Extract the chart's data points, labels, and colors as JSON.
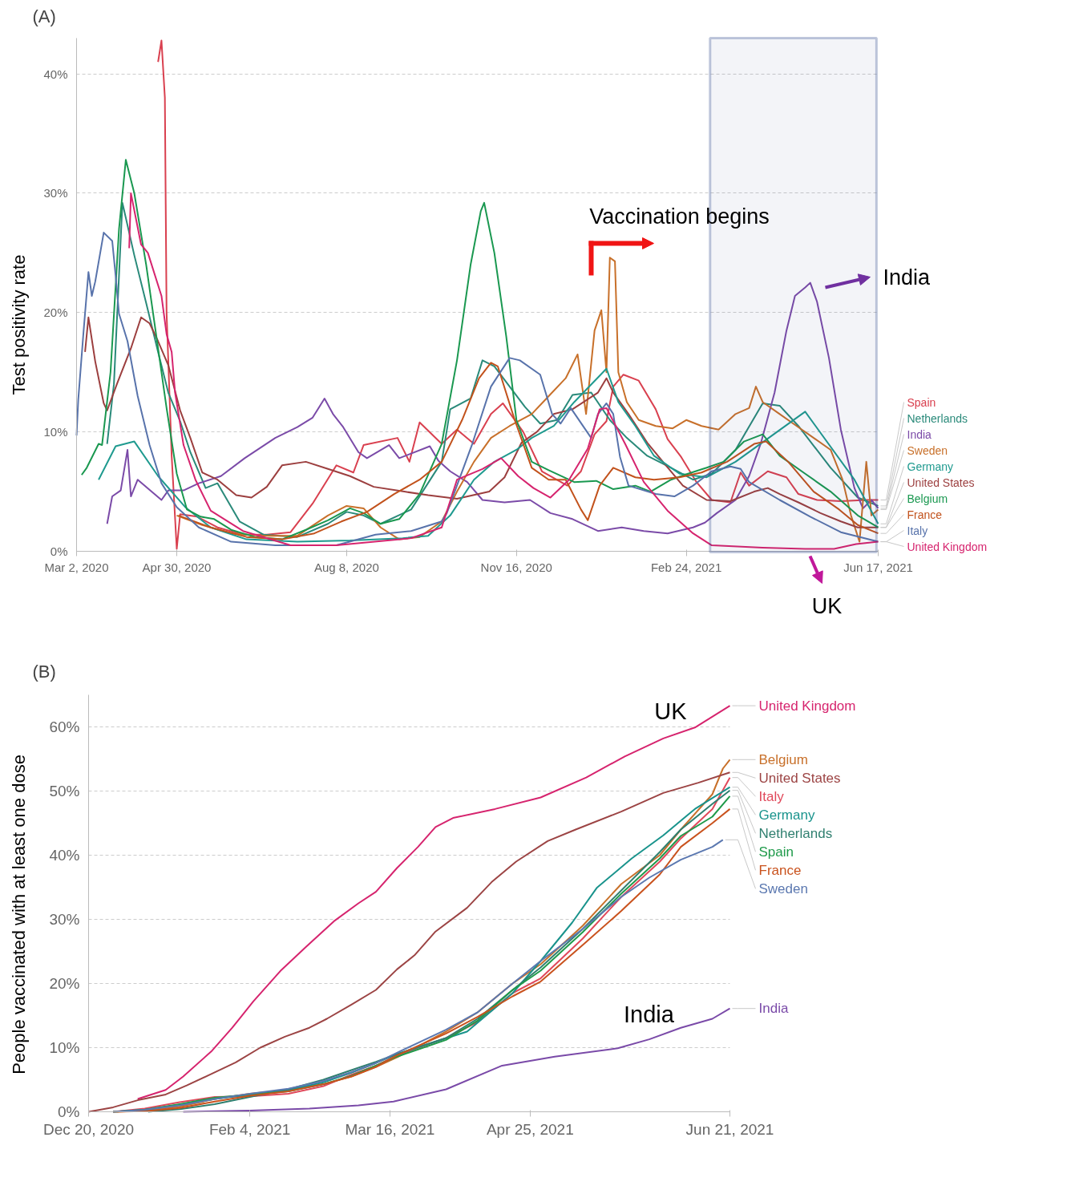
{
  "chart_data": [
    {
      "type": "line",
      "ylabel": "Test positivity rate",
      "xlim": [
        "2020-03-02",
        "2021-06-17"
      ],
      "ylim": [
        0,
        43
      ],
      "xticks": [
        {
          "value": "2020-03-02",
          "label": "Mar 2, 2020"
        },
        {
          "value": "2020-04-30",
          "label": "Apr 30, 2020"
        },
        {
          "value": "2020-08-08",
          "label": "Aug 8, 2020"
        },
        {
          "value": "2020-11-16",
          "label": "Nov 16, 2020"
        },
        {
          "value": "2021-02-24",
          "label": "Feb 24, 2021"
        },
        {
          "value": "2021-06-17",
          "label": "Jun 17, 2021"
        }
      ],
      "yticks": [
        {
          "value": 0,
          "label": "0%"
        },
        {
          "value": 10,
          "label": "10%"
        },
        {
          "value": 20,
          "label": "20%"
        },
        {
          "value": 30,
          "label": "30%"
        },
        {
          "value": 40,
          "label": "40%"
        }
      ],
      "grid": "y",
      "annotations": [
        "(A)",
        "Vaccination begins",
        "India",
        "UK"
      ],
      "bands": [
        {
          "axis": "x",
          "from": "2021-03-10",
          "to": "2021-06-16",
          "color": "#2e4a8a"
        }
      ],
      "series": [
        {
          "name": "Spain",
          "color": "#d9404f",
          "x": [
            "2020-04-19",
            "2020-04-21",
            "2020-04-23",
            "2020-04-24",
            "2020-04-27",
            "2020-04-30",
            "2020-05-02",
            "2020-05-12",
            "2020-05-24",
            "2020-06-08",
            "2020-06-22",
            "2020-07-06",
            "2020-07-19",
            "2020-08-02",
            "2020-08-12",
            "2020-08-18",
            "2020-09-07",
            "2020-09-14",
            "2020-09-20",
            "2020-10-03",
            "2020-10-12",
            "2020-10-22",
            "2020-11-01",
            "2020-11-08",
            "2020-11-20",
            "2020-12-01",
            "2020-12-16",
            "2020-12-24",
            "2021-01-01",
            "2021-01-08",
            "2021-01-12",
            "2021-01-18",
            "2021-01-27",
            "2021-02-06",
            "2021-02-13",
            "2021-02-21",
            "2021-03-02",
            "2021-03-11",
            "2021-03-22",
            "2021-03-28",
            "2021-04-02",
            "2021-04-13",
            "2021-04-24",
            "2021-05-01",
            "2021-05-12",
            "2021-05-26",
            "2021-06-10",
            "2021-06-17"
          ],
          "values": [
            41,
            42.8,
            38,
            20,
            8,
            0.2,
            3.1,
            2.9,
            2.0,
            1.4,
            1.4,
            1.6,
            4.0,
            7.2,
            6.6,
            8.9,
            9.5,
            7.5,
            10.8,
            9.0,
            10.2,
            9.0,
            11.5,
            12.4,
            10.0,
            6.7,
            5.5,
            6.7,
            9.8,
            10.9,
            13.8,
            14.8,
            14.3,
            11.9,
            9.4,
            7.9,
            5.8,
            4.3,
            4.1,
            6.6,
            5.5,
            6.7,
            6.2,
            4.8,
            4.3,
            4.2,
            4.3,
            4.3
          ]
        },
        {
          "name": "Netherlands",
          "color": "#2a8a7a",
          "x": [
            "2020-03-20",
            "2020-03-24",
            "2020-03-29",
            "2020-04-05",
            "2020-04-12",
            "2020-04-19",
            "2020-04-25",
            "2020-05-02",
            "2020-05-08",
            "2020-05-17",
            "2020-05-24",
            "2020-06-06",
            "2020-06-20",
            "2020-07-10",
            "2020-07-28",
            "2020-08-08",
            "2020-08-18",
            "2020-08-28",
            "2020-09-15",
            "2020-10-03",
            "2020-10-08",
            "2020-10-20",
            "2020-10-27",
            "2020-11-03",
            "2020-11-12",
            "2020-11-21",
            "2020-11-30",
            "2020-12-10",
            "2020-12-19",
            "2020-12-30",
            "2021-01-10",
            "2021-01-20",
            "2021-02-01",
            "2021-02-15",
            "2021-02-28",
            "2021-03-11",
            "2021-03-25",
            "2021-04-10",
            "2021-04-20",
            "2021-05-01",
            "2021-05-20",
            "2021-06-05",
            "2021-06-17"
          ],
          "values": [
            9.0,
            14,
            29.2,
            24.8,
            20.8,
            16.7,
            13.3,
            10.9,
            8.3,
            5.3,
            5.7,
            2.5,
            1.4,
            1.2,
            2.3,
            3.3,
            3.0,
            2.3,
            3.5,
            7.5,
            11.9,
            12.8,
            16.0,
            15.5,
            13.8,
            12.1,
            10.7,
            11.0,
            13.1,
            13.3,
            11.0,
            9.5,
            8.0,
            7.0,
            6.0,
            6.5,
            8.5,
            12.4,
            12.2,
            10.5,
            7.0,
            4.5,
            3.8
          ]
        },
        {
          "name": "India",
          "color": "#7b4ba8",
          "x": [
            "2020-03-20",
            "2020-03-23",
            "2020-03-28",
            "2020-04-01",
            "2020-04-03",
            "2020-04-07",
            "2020-04-16",
            "2020-04-21",
            "2020-04-25",
            "2020-05-04",
            "2020-05-13",
            "2020-05-26",
            "2020-06-09",
            "2020-06-27",
            "2020-07-10",
            "2020-07-19",
            "2020-07-26",
            "2020-07-31",
            "2020-08-06",
            "2020-08-15",
            "2020-08-20",
            "2020-09-02",
            "2020-09-08",
            "2020-09-26",
            "2020-10-01",
            "2020-10-08",
            "2020-10-18",
            "2020-10-27",
            "2020-11-09",
            "2020-11-24",
            "2020-12-06",
            "2020-12-19",
            "2021-01-03",
            "2021-01-17",
            "2021-01-30",
            "2021-02-13",
            "2021-02-28",
            "2021-03-07",
            "2021-03-14",
            "2021-03-25",
            "2021-04-02",
            "2021-04-09",
            "2021-04-17",
            "2021-04-24",
            "2021-04-29",
            "2021-05-05",
            "2021-05-08",
            "2021-05-12",
            "2021-05-19",
            "2021-05-26",
            "2021-06-03",
            "2021-06-08",
            "2021-06-13",
            "2021-06-17"
          ],
          "values": [
            2.3,
            4.6,
            5.1,
            8.5,
            4.6,
            6.0,
            4.9,
            4.3,
            5.1,
            5.1,
            5.7,
            6.3,
            7.8,
            9.5,
            10.4,
            11.2,
            12.8,
            11.5,
            10.4,
            8.3,
            7.8,
            8.9,
            7.8,
            8.8,
            7.6,
            6.7,
            5.8,
            4.3,
            4.1,
            4.3,
            3.2,
            2.7,
            1.7,
            2.0,
            1.7,
            1.5,
            2.0,
            2.4,
            3.2,
            4.3,
            6.3,
            9.1,
            13.3,
            18.5,
            21.4,
            22.1,
            22.5,
            20.9,
            16.2,
            10.2,
            5.3,
            3.6,
            4.3,
            3.6
          ]
        },
        {
          "name": "Sweden",
          "color": "#c8702a",
          "x": [
            "2020-04-30",
            "2020-05-15",
            "2020-06-01",
            "2020-06-20",
            "2020-07-10",
            "2020-07-28",
            "2020-08-08",
            "2020-08-18",
            "2020-08-28",
            "2020-09-08",
            "2020-09-20",
            "2020-10-03",
            "2020-10-12",
            "2020-10-22",
            "2020-11-01",
            "2020-11-12",
            "2020-11-25",
            "2020-12-05",
            "2020-12-15",
            "2020-12-22",
            "2020-12-27",
            "2021-01-01",
            "2021-01-05",
            "2021-01-08",
            "2021-01-10",
            "2021-01-13",
            "2021-01-15",
            "2021-01-20",
            "2021-01-27",
            "2021-02-06",
            "2021-02-16",
            "2021-02-24",
            "2021-03-05",
            "2021-03-15",
            "2021-03-25",
            "2021-04-02",
            "2021-04-06",
            "2021-04-10",
            "2021-04-20",
            "2021-04-30",
            "2021-05-10",
            "2021-05-20",
            "2021-05-27",
            "2021-06-01",
            "2021-06-06",
            "2021-06-10",
            "2021-06-13",
            "2021-06-17"
          ],
          "values": [
            3,
            2.2,
            1.5,
            1.3,
            1.3,
            3.0,
            3.8,
            3.6,
            2.0,
            1.0,
            1.2,
            2.5,
            5,
            7.5,
            9.5,
            10.5,
            11.5,
            13,
            14.5,
            16.5,
            11.5,
            18.5,
            20.2,
            15,
            24.6,
            24.3,
            15,
            12.5,
            11,
            10.5,
            10.3,
            11,
            10.5,
            10.2,
            11.5,
            12,
            13.8,
            12.5,
            11.5,
            10.5,
            9.5,
            8.5,
            6,
            3,
            0.8,
            7.5,
            3,
            3.5
          ]
        },
        {
          "name": "United States",
          "color": "#9c3f3f",
          "x": [
            "2020-03-07",
            "2020-03-09",
            "2020-03-13",
            "2020-03-18",
            "2020-03-20",
            "2020-03-26",
            "2020-04-03",
            "2020-04-09",
            "2020-04-14",
            "2020-04-19",
            "2020-04-25",
            "2020-05-02",
            "2020-05-08",
            "2020-05-15",
            "2020-05-24",
            "2020-06-04",
            "2020-06-13",
            "2020-06-22",
            "2020-07-01",
            "2020-07-15",
            "2020-07-28",
            "2020-08-10",
            "2020-08-24",
            "2020-09-11",
            "2020-09-25",
            "2020-10-12",
            "2020-10-31",
            "2020-11-09",
            "2020-11-19",
            "2020-11-28",
            "2020-12-08",
            "2020-12-19",
            "2021-01-03",
            "2021-01-08",
            "2021-01-12",
            "2021-01-21",
            "2021-02-01",
            "2021-02-12",
            "2021-02-22",
            "2021-03-08",
            "2021-03-22",
            "2021-04-05",
            "2021-04-13",
            "2021-04-20",
            "2021-05-01",
            "2021-05-14",
            "2021-05-26",
            "2021-06-05",
            "2021-06-17"
          ],
          "values": [
            16.7,
            19.6,
            15.9,
            12.4,
            11.8,
            14.1,
            17,
            19.6,
            19.1,
            17.6,
            15.6,
            11.8,
            9.5,
            6.6,
            6.0,
            4.7,
            4.5,
            5.4,
            7.2,
            7.5,
            6.9,
            6.3,
            5.4,
            5.0,
            4.7,
            4.4,
            5.0,
            6.2,
            9.1,
            10.0,
            11.5,
            11.9,
            13.3,
            14.5,
            13.3,
            11.5,
            9.1,
            7.2,
            5.5,
            4.3,
            4.2,
            5.0,
            5.3,
            4.8,
            4.1,
            3.2,
            2.5,
            2.0,
            2.0
          ]
        },
        {
          "name": "Germany",
          "color": "#1f9a8f",
          "x": [
            "2020-03-15",
            "2020-03-25",
            "2020-04-05",
            "2020-04-19",
            "2020-05-05",
            "2020-05-20",
            "2020-06-10",
            "2020-07-10",
            "2020-08-10",
            "2020-09-10",
            "2020-09-25",
            "2020-10-08",
            "2020-10-22",
            "2020-11-03",
            "2020-11-16",
            "2020-11-25",
            "2020-12-08",
            "2020-12-20",
            "2021-01-08",
            "2021-01-15",
            "2021-01-25",
            "2021-02-05",
            "2021-02-20",
            "2021-03-08",
            "2021-03-25",
            "2021-05-05",
            "2021-06-03",
            "2021-06-17"
          ],
          "values": [
            6.0,
            8.8,
            9.2,
            6.3,
            3.7,
            2.0,
            1.0,
            0.8,
            0.9,
            1.1,
            1.3,
            3.0,
            6.0,
            7.5,
            8.5,
            9.5,
            10.5,
            12.5,
            15.3,
            12.5,
            10.5,
            8.0,
            6.5,
            6.2,
            7.5,
            11.7,
            6.0,
            2.3
          ]
        },
        {
          "name": "Belgium",
          "color": "#1a9850",
          "x": [
            "2020-03-05",
            "2020-03-08",
            "2020-03-15",
            "2020-03-17",
            "2020-03-22",
            "2020-03-27",
            "2020-03-31",
            "2020-04-05",
            "2020-04-12",
            "2020-04-19",
            "2020-04-24",
            "2020-04-30",
            "2020-05-06",
            "2020-05-14",
            "2020-05-22",
            "2020-06-01",
            "2020-06-15",
            "2020-07-01",
            "2020-07-15",
            "2020-07-28",
            "2020-08-10",
            "2020-08-18",
            "2020-08-28",
            "2020-09-08",
            "2020-09-20",
            "2020-10-03",
            "2020-10-12",
            "2020-10-20",
            "2020-10-26",
            "2020-10-28",
            "2020-11-03",
            "2020-11-10",
            "2020-11-16",
            "2020-11-25",
            "2020-12-05",
            "2020-12-20",
            "2021-01-02",
            "2021-01-12",
            "2021-01-25",
            "2021-02-03",
            "2021-02-15",
            "2021-02-25",
            "2021-03-08",
            "2021-03-18",
            "2021-03-30",
            "2021-04-10",
            "2021-04-20",
            "2021-05-05",
            "2021-05-20",
            "2021-06-05",
            "2021-06-17"
          ],
          "values": [
            6.4,
            7,
            9,
            8.9,
            15,
            27,
            32.8,
            30,
            24,
            17,
            12,
            6.5,
            3.5,
            2.9,
            2.7,
            1.8,
            1.2,
            1.0,
            1.8,
            2.6,
            3.6,
            3.2,
            2.3,
            2.7,
            4.8,
            9,
            16,
            24,
            28.5,
            29.2,
            25,
            18,
            11,
            7.5,
            6.8,
            5.8,
            5.9,
            5.2,
            5.5,
            5.0,
            6.0,
            6.5,
            7.0,
            7.5,
            9.2,
            9.8,
            8.0,
            6.5,
            5.0,
            3.0,
            2.0
          ]
        },
        {
          "name": "France",
          "color": "#c2521c",
          "x": [
            "2020-05-01",
            "2020-05-20",
            "2020-06-10",
            "2020-07-01",
            "2020-07-20",
            "2020-08-05",
            "2020-08-20",
            "2020-09-05",
            "2020-09-20",
            "2020-10-03",
            "2020-10-15",
            "2020-10-25",
            "2020-11-01",
            "2020-11-05",
            "2020-11-15",
            "2020-11-25",
            "2020-12-05",
            "2020-12-15",
            "2020-12-24",
            "2020-12-28",
            "2021-01-04",
            "2021-01-12",
            "2021-01-25",
            "2021-02-05",
            "2021-02-20",
            "2021-03-05",
            "2021-03-20",
            "2021-04-05",
            "2021-04-12",
            "2021-04-25",
            "2021-05-10",
            "2021-05-25",
            "2021-06-05",
            "2021-06-17"
          ],
          "values": [
            3.0,
            2.0,
            1.2,
            1.0,
            1.5,
            2.5,
            3.3,
            4.8,
            6.0,
            7.5,
            11,
            14.5,
            15.8,
            15.5,
            11,
            7,
            6,
            6,
            3.5,
            2.6,
            5.5,
            7,
            6.2,
            6.0,
            6.2,
            6.6,
            7.5,
            9.0,
            9.2,
            7.5,
            5.0,
            3.5,
            2.2,
            1.5
          ]
        },
        {
          "name": "Italy",
          "color": "#5873ab",
          "x": [
            "2020-03-02",
            "2020-03-03",
            "2020-03-06",
            "2020-03-09",
            "2020-03-11",
            "2020-03-13",
            "2020-03-18",
            "2020-03-23",
            "2020-03-25",
            "2020-03-27",
            "2020-04-01",
            "2020-04-07",
            "2020-04-14",
            "2020-04-21",
            "2020-04-30",
            "2020-05-13",
            "2020-06-01",
            "2020-06-27",
            "2020-08-02",
            "2020-08-25",
            "2020-09-15",
            "2020-10-03",
            "2020-10-06",
            "2020-10-21",
            "2020-11-01",
            "2020-11-12",
            "2020-11-18",
            "2020-11-30",
            "2020-12-07",
            "2020-12-12",
            "2020-12-18",
            "2020-12-30",
            "2021-01-03",
            "2021-01-08",
            "2021-01-12",
            "2021-01-16",
            "2021-01-21",
            "2021-02-06",
            "2021-02-17",
            "2021-02-28",
            "2021-03-11",
            "2021-03-22",
            "2021-03-28",
            "2021-04-02",
            "2021-04-20",
            "2021-05-08",
            "2021-05-26",
            "2021-06-17"
          ],
          "values": [
            9.7,
            12.7,
            18.2,
            23.4,
            21.4,
            22.6,
            26.7,
            26,
            23.1,
            19.9,
            17.6,
            13,
            8.9,
            5.7,
            3.7,
            2.0,
            0.8,
            0.5,
            0.5,
            1.4,
            1.7,
            2.5,
            3.2,
            9,
            13.8,
            16.2,
            16.0,
            14.8,
            11.5,
            10.7,
            12,
            9.5,
            11.5,
            12.4,
            11.5,
            7.9,
            5.5,
            4.8,
            4.6,
            5.5,
            6.7,
            7.1,
            6.9,
            5.8,
            4.3,
            2.9,
            1.6,
            0.8
          ]
        },
        {
          "name": "United Kingdom",
          "color": "#d6246e",
          "x": [
            "2020-04-02",
            "2020-04-03",
            "2020-04-09",
            "2020-04-13",
            "2020-04-21",
            "2020-04-24",
            "2020-04-27",
            "2020-04-29",
            "2020-05-04",
            "2020-05-11",
            "2020-05-20",
            "2020-06-08",
            "2020-07-06",
            "2020-08-02",
            "2020-09-15",
            "2020-10-03",
            "2020-10-12",
            "2020-10-27",
            "2020-11-07",
            "2020-11-17",
            "2020-11-26",
            "2020-12-06",
            "2020-12-17",
            "2020-12-28",
            "2021-01-04",
            "2021-01-08",
            "2021-01-19",
            "2021-01-30",
            "2021-02-13",
            "2021-02-28",
            "2021-03-11",
            "2021-04-10",
            "2021-05-05",
            "2021-05-22",
            "2021-06-04",
            "2021-06-17"
          ],
          "values": [
            25.4,
            30,
            25.7,
            25,
            21.4,
            18.2,
            16.7,
            13.3,
            8.9,
            6,
            3.4,
            1.7,
            0.5,
            0.5,
            1.1,
            2.0,
            6.0,
            6.9,
            7.8,
            6.3,
            5.3,
            4.5,
            6.0,
            8.6,
            11.9,
            12.0,
            9.0,
            5.8,
            3.4,
            1.5,
            0.5,
            0.3,
            0.2,
            0.2,
            0.6,
            0.8
          ]
        }
      ]
    },
    {
      "type": "line",
      "ylabel": "People vaccinated with at least one dose",
      "xlim": [
        "2020-12-20",
        "2021-06-21"
      ],
      "ylim": [
        0,
        65
      ],
      "xticks": [
        {
          "value": "2020-12-20",
          "label": "Dec 20, 2020"
        },
        {
          "value": "2021-02-04",
          "label": "Feb 4, 2021"
        },
        {
          "value": "2021-03-16",
          "label": "Mar 16, 2021"
        },
        {
          "value": "2021-04-25",
          "label": "Apr 25, 2021"
        },
        {
          "value": "2021-06-21",
          "label": "Jun 21, 2021"
        }
      ],
      "yticks": [
        {
          "value": 0,
          "label": "0%"
        },
        {
          "value": 10,
          "label": "10%"
        },
        {
          "value": 20,
          "label": "20%"
        },
        {
          "value": 30,
          "label": "30%"
        },
        {
          "value": 40,
          "label": "40%"
        },
        {
          "value": 50,
          "label": "50%"
        },
        {
          "value": 60,
          "label": "60%"
        }
      ],
      "grid": "y",
      "annotations": [
        "(B)",
        "UK",
        "India"
      ],
      "series": [
        {
          "name": "United Kingdom",
          "color": "#d6246e",
          "x": [
            "2021-01-03",
            "2021-01-11",
            "2021-01-16",
            "2021-01-24",
            "2021-01-30",
            "2021-02-05",
            "2021-02-13",
            "2021-02-20",
            "2021-02-28",
            "2021-03-07",
            "2021-03-12",
            "2021-03-18",
            "2021-03-24",
            "2021-03-29",
            "2021-04-03",
            "2021-04-15",
            "2021-04-28",
            "2021-05-11",
            "2021-05-22",
            "2021-06-02",
            "2021-06-11",
            "2021-06-21"
          ],
          "values": [
            2.0,
            3.4,
            5.5,
            9.4,
            13.1,
            17.2,
            22.1,
            25.7,
            29.7,
            32.5,
            34.3,
            38,
            41.3,
            44.4,
            45.8,
            47.2,
            49,
            52.1,
            55.4,
            58.2,
            59.9,
            63.3
          ]
        },
        {
          "name": "Belgium",
          "color": "#c8702a",
          "x": [
            "2020-12-28",
            "2021-01-05",
            "2021-01-15",
            "2021-01-25",
            "2021-02-04",
            "2021-02-15",
            "2021-02-25",
            "2021-03-05",
            "2021-03-12",
            "2021-03-18",
            "2021-04-01",
            "2021-04-10",
            "2021-04-20",
            "2021-04-28",
            "2021-05-10",
            "2021-05-21",
            "2021-06-01",
            "2021-06-07",
            "2021-06-16",
            "2021-06-19",
            "2021-06-21"
          ],
          "values": [
            0,
            0.2,
            0.8,
            2.0,
            2.8,
            3.4,
            4.3,
            5.5,
            7.0,
            8.5,
            12.5,
            15.5,
            20,
            23,
            29,
            35.5,
            40,
            44,
            49.5,
            53.5,
            54.9
          ]
        },
        {
          "name": "United States",
          "color": "#9c4444",
          "x": [
            "2020-12-20",
            "2020-12-27",
            "2021-01-03",
            "2021-01-11",
            "2021-01-17",
            "2021-01-24",
            "2021-01-31",
            "2021-02-07",
            "2021-02-14",
            "2021-02-21",
            "2021-02-26",
            "2021-03-05",
            "2021-03-12",
            "2021-03-18",
            "2021-03-23",
            "2021-03-29",
            "2021-04-07",
            "2021-04-14",
            "2021-04-21",
            "2021-04-30",
            "2021-05-08",
            "2021-05-21",
            "2021-06-02",
            "2021-06-12",
            "2021-06-21"
          ],
          "values": [
            0,
            0.7,
            1.8,
            2.7,
            4.1,
            5.9,
            7.7,
            10,
            11.7,
            13.1,
            14.5,
            16.7,
            19,
            22.2,
            24.4,
            28.1,
            31.8,
            35.8,
            39,
            42.2,
            44,
            46.8,
            49.7,
            51.3,
            52.9
          ]
        },
        {
          "name": "Italy",
          "color": "#e0485a",
          "x": [
            "2020-12-27",
            "2021-01-05",
            "2021-01-15",
            "2021-01-25",
            "2021-02-04",
            "2021-02-15",
            "2021-02-25",
            "2021-03-05",
            "2021-03-12",
            "2021-03-18",
            "2021-04-01",
            "2021-04-10",
            "2021-04-20",
            "2021-04-28",
            "2021-05-10",
            "2021-05-21",
            "2021-06-01",
            "2021-06-07",
            "2021-06-16",
            "2021-06-21"
          ],
          "values": [
            0,
            0.5,
            1.5,
            2.3,
            2.4,
            2.8,
            4.0,
            5.8,
            7.2,
            8.8,
            11.5,
            14,
            18.5,
            20.8,
            27,
            33.5,
            39,
            42.6,
            47.2,
            52.1
          ]
        },
        {
          "name": "Germany",
          "color": "#19938c",
          "x": [
            "2020-12-27",
            "2021-01-05",
            "2021-01-15",
            "2021-01-25",
            "2021-02-04",
            "2021-02-15",
            "2021-02-25",
            "2021-03-05",
            "2021-03-12",
            "2021-03-18",
            "2021-04-07",
            "2021-04-20",
            "2021-04-28",
            "2021-05-07",
            "2021-05-14",
            "2021-05-24",
            "2021-06-02",
            "2021-06-11",
            "2021-06-21"
          ],
          "values": [
            0,
            0.3,
            1.1,
            2.0,
            2.7,
            3.4,
            4.6,
            6.1,
            7.6,
            9.0,
            12.5,
            18.5,
            23.5,
            29.5,
            34.9,
            39.5,
            43.1,
            47.2,
            50.6
          ]
        },
        {
          "name": "Netherlands",
          "color": "#2f7f6f",
          "x": [
            "2021-01-06",
            "2021-01-15",
            "2021-01-25",
            "2021-02-04",
            "2021-02-15",
            "2021-02-25",
            "2021-03-05",
            "2021-03-12",
            "2021-03-18",
            "2021-04-01",
            "2021-04-10",
            "2021-04-20",
            "2021-04-28",
            "2021-05-10",
            "2021-05-21",
            "2021-06-01",
            "2021-06-07",
            "2021-06-16",
            "2021-06-21"
          ],
          "values": [
            0,
            0.4,
            1.2,
            2.3,
            3.5,
            5.0,
            6.5,
            7.8,
            9.0,
            11.5,
            14.5,
            19,
            22.5,
            28.5,
            34.5,
            40.5,
            44,
            48,
            50.1
          ]
        },
        {
          "name": "Spain",
          "color": "#1f9a4a",
          "x": [
            "2020-12-27",
            "2021-01-05",
            "2021-01-15",
            "2021-01-25",
            "2021-02-04",
            "2021-02-15",
            "2021-02-25",
            "2021-03-05",
            "2021-03-12",
            "2021-03-18",
            "2021-04-01",
            "2021-04-10",
            "2021-04-20",
            "2021-04-28",
            "2021-05-10",
            "2021-05-21",
            "2021-06-01",
            "2021-06-07",
            "2021-06-16",
            "2021-06-21"
          ],
          "values": [
            0,
            0.3,
            1.2,
            2.2,
            2.7,
            3.2,
            4.3,
            5.6,
            7.2,
            8.6,
            11.2,
            14.2,
            19,
            22,
            28,
            34,
            39.5,
            43,
            46,
            49.2
          ]
        },
        {
          "name": "France",
          "color": "#c9521d",
          "x": [
            "2020-12-27",
            "2021-01-05",
            "2021-01-15",
            "2021-01-25",
            "2021-02-04",
            "2021-02-15",
            "2021-02-25",
            "2021-03-05",
            "2021-03-12",
            "2021-03-18",
            "2021-04-01",
            "2021-04-10",
            "2021-04-20",
            "2021-04-28",
            "2021-05-10",
            "2021-05-21",
            "2021-06-01",
            "2021-06-07",
            "2021-06-16",
            "2021-06-21"
          ],
          "values": [
            0,
            0.1,
            0.6,
            1.6,
            2.5,
            3.2,
            4.3,
            5.5,
            7.0,
            8.8,
            12.2,
            14.8,
            18,
            20.3,
            26,
            31.3,
            37,
            41.3,
            45,
            47.2
          ]
        },
        {
          "name": "Sweden",
          "color": "#5b78b0",
          "x": [
            "2020-12-27",
            "2021-01-05",
            "2021-01-15",
            "2021-01-25",
            "2021-02-04",
            "2021-02-15",
            "2021-02-25",
            "2021-03-05",
            "2021-03-12",
            "2021-03-18",
            "2021-04-01",
            "2021-04-10",
            "2021-04-20",
            "2021-04-28",
            "2021-05-10",
            "2021-05-21",
            "2021-05-29",
            "2021-06-07",
            "2021-06-16",
            "2021-06-19"
          ],
          "values": [
            0,
            0.3,
            1.0,
            2.0,
            2.8,
            3.6,
            4.8,
            6.2,
            7.6,
            9.2,
            12.8,
            15.5,
            20,
            23.5,
            28.5,
            33.5,
            36.5,
            39.3,
            41.3,
            42.4
          ]
        },
        {
          "name": "India",
          "color": "#7a4aa8",
          "x": [
            "2021-01-16",
            "2021-02-04",
            "2021-02-21",
            "2021-03-07",
            "2021-03-17",
            "2021-04-01",
            "2021-04-17",
            "2021-05-02",
            "2021-05-20",
            "2021-05-29",
            "2021-06-07",
            "2021-06-16",
            "2021-06-21"
          ],
          "values": [
            0,
            0.2,
            0.5,
            1.0,
            1.6,
            3.5,
            7.2,
            8.6,
            9.9,
            11.3,
            13.1,
            14.5,
            16.1
          ]
        }
      ]
    }
  ]
}
